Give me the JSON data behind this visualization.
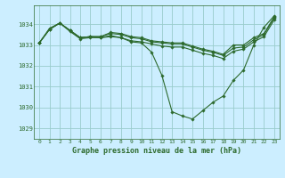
{
  "background_color": "#cceeff",
  "grid_color": "#99cccc",
  "line_color": "#2d6a2d",
  "marker_color": "#2d6a2d",
  "title": "Graphe pression niveau de la mer (hPa)",
  "xlim": [
    -0.5,
    23.5
  ],
  "ylim": [
    1028.5,
    1034.9
  ],
  "yticks": [
    1029,
    1030,
    1031,
    1032,
    1033,
    1034
  ],
  "xticks": [
    0,
    1,
    2,
    3,
    4,
    5,
    6,
    7,
    8,
    9,
    10,
    11,
    12,
    13,
    14,
    15,
    16,
    17,
    18,
    19,
    20,
    21,
    22,
    23
  ],
  "series": [
    [
      1033.1,
      1033.75,
      1034.05,
      1033.65,
      1033.3,
      1033.35,
      1033.35,
      1033.45,
      1033.35,
      1033.2,
      1033.15,
      1033.05,
      1032.95,
      1032.9,
      1032.9,
      1032.75,
      1032.6,
      1032.5,
      1032.35,
      1032.7,
      1032.8,
      1033.15,
      1033.4,
      1034.2
    ],
    [
      1033.1,
      1033.75,
      1034.05,
      1033.7,
      1033.35,
      1033.4,
      1033.4,
      1033.55,
      1033.5,
      1033.35,
      1033.3,
      1033.15,
      1033.1,
      1033.05,
      1033.05,
      1032.9,
      1032.75,
      1032.65,
      1032.5,
      1032.85,
      1032.9,
      1033.25,
      1033.5,
      1034.3
    ],
    [
      1033.1,
      1033.75,
      1034.05,
      1033.7,
      1033.35,
      1033.4,
      1033.4,
      1033.6,
      1033.55,
      1033.4,
      1033.35,
      1033.2,
      1033.15,
      1033.1,
      1033.1,
      1032.95,
      1032.8,
      1032.7,
      1032.55,
      1033.0,
      1033.0,
      1033.35,
      1033.55,
      1034.35
    ],
    [
      1033.1,
      1033.8,
      1034.05,
      1033.7,
      1033.35,
      1033.4,
      1033.35,
      1033.4,
      1033.35,
      1033.15,
      1033.1,
      1032.65,
      1031.55,
      1029.8,
      1029.6,
      1029.45,
      1029.85,
      1030.25,
      1030.55,
      1031.3,
      1031.8,
      1033.0,
      1033.85,
      1034.4
    ]
  ]
}
